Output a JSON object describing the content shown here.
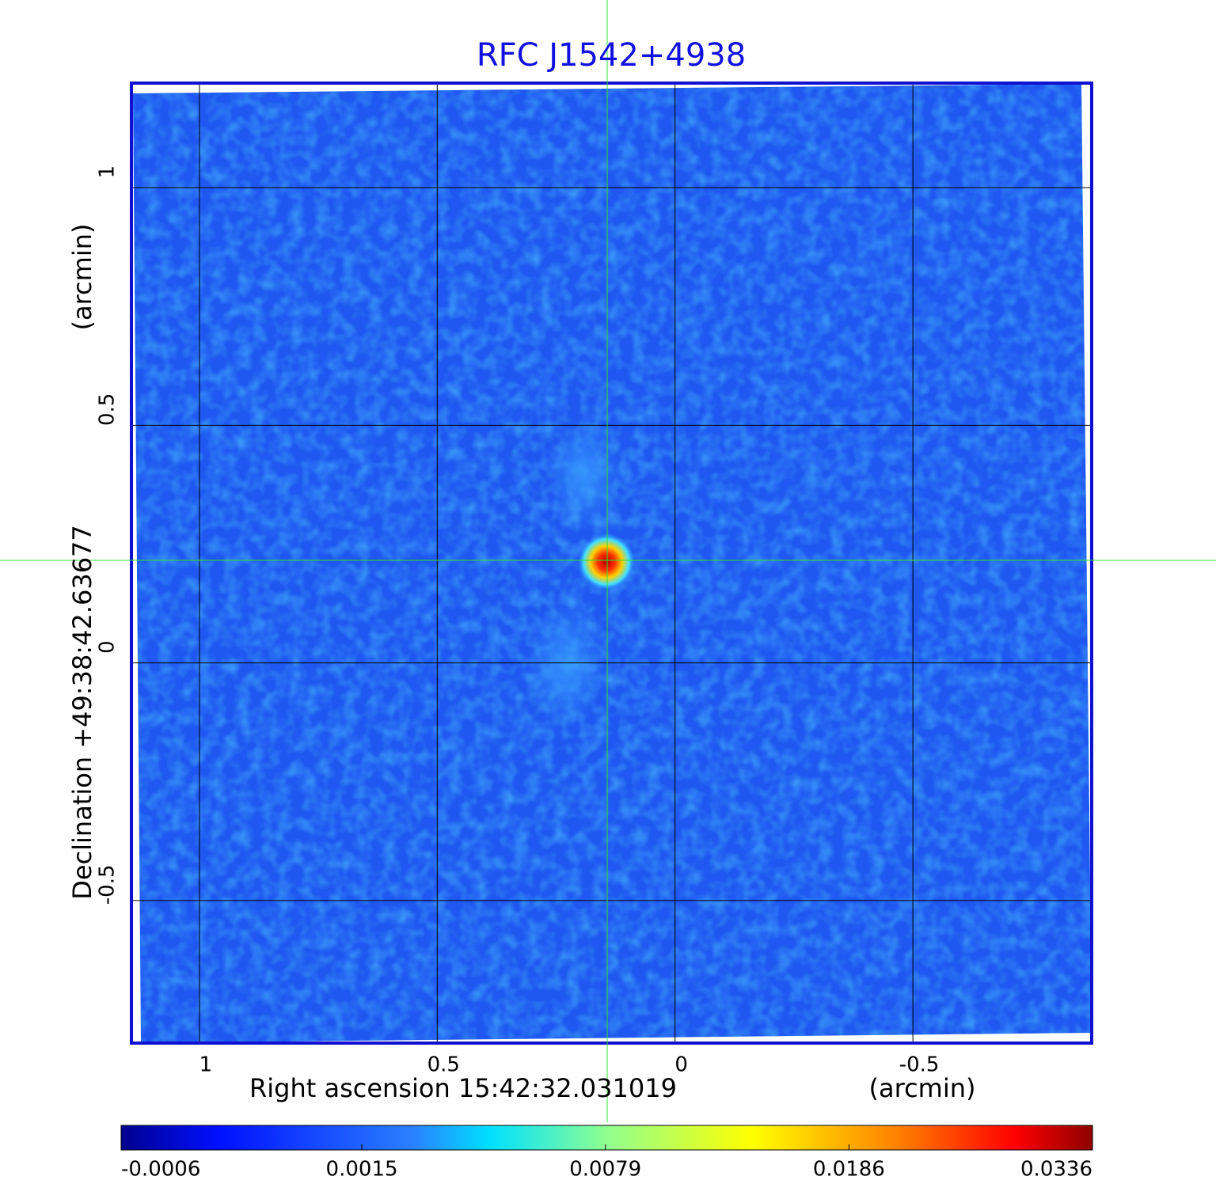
{
  "chart_data": {
    "type": "image",
    "title": "RFC J1542+4938",
    "xlabel": "Right ascension  15:42:32.031019",
    "xunit": "(arcmin)",
    "ylabel": "Declination  +49:38:42.63677",
    "yunit": "(arcmin)",
    "xlim": [
      1.143,
      -0.876
    ],
    "xticks": [
      1.0,
      0.5,
      0.0,
      -0.5
    ],
    "ylim": [
      -0.8,
      1.22
    ],
    "yticks": [
      1.0,
      0.5,
      0.0,
      -0.5
    ],
    "grid": true,
    "colorbar": {
      "clim": [
        -0.0006,
        0.0336
      ],
      "scale": "sqrt",
      "ticks": [
        -0.0006,
        0.0015,
        0.0079,
        0.0186,
        0.0336
      ]
    }
  }
}
